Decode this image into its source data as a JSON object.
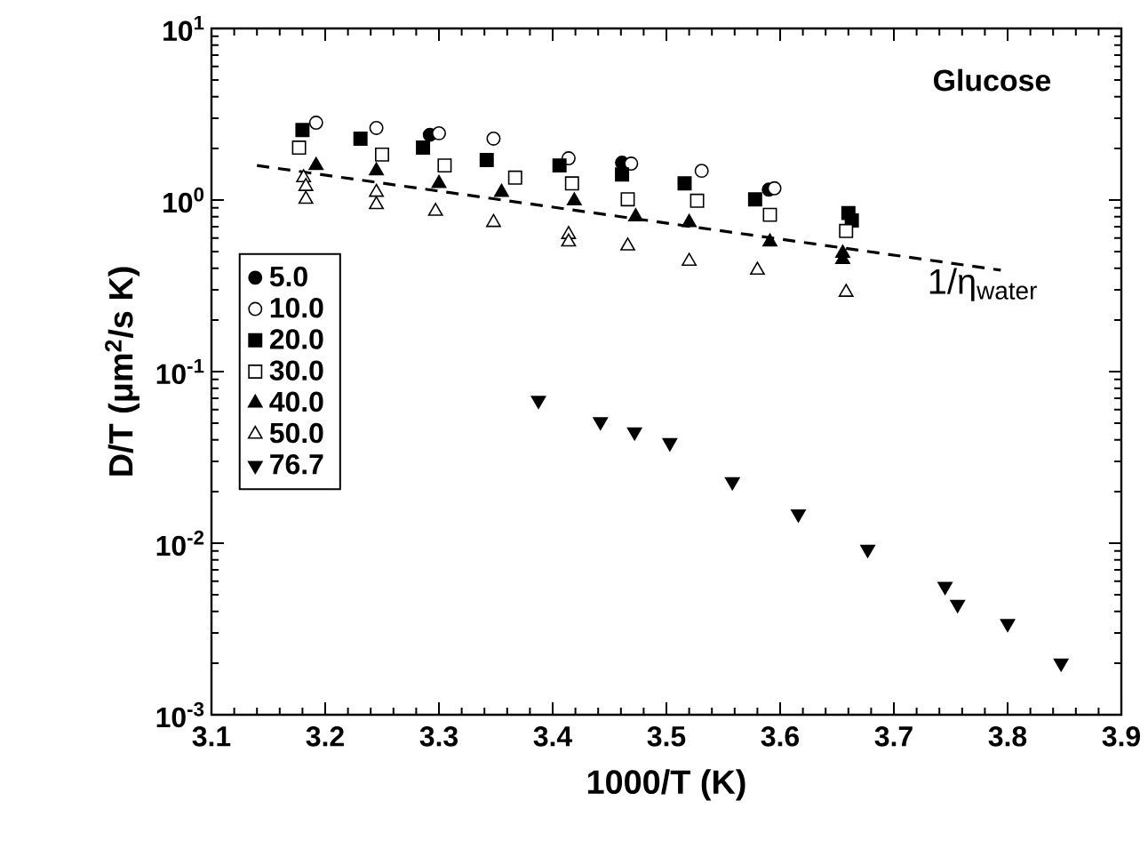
{
  "chart_data": {
    "type": "scatter",
    "xlabel": "1000/T (K)",
    "ylabel": "D/T (μm$^{2}$/s K)",
    "log": "y",
    "xlim": [
      3.1,
      3.9
    ],
    "xticks": [
      3.1,
      3.2,
      3.3,
      3.4,
      3.5,
      3.6,
      3.7,
      3.8,
      3.9
    ],
    "ylim": [
      0.001,
      10
    ],
    "yticks": [
      {
        "value": 0.001,
        "label": "10$^{-3}$"
      },
      {
        "value": 0.01,
        "label": "10$^{-2}$"
      },
      {
        "value": 0.1,
        "label": "10$^{-1}$"
      },
      {
        "value": 1,
        "label": "10$^{0}$"
      },
      {
        "value": 10,
        "label": "10$^{1}$"
      }
    ],
    "legend": "left",
    "grid": false,
    "annotations": [
      "Glucose",
      "1/η$_{water}$"
    ],
    "series": [
      {
        "name": "5.0",
        "color": "#000000",
        "marker": "circle",
        "x": [
          3.292,
          3.461,
          3.59
        ],
        "values": [
          2.4,
          1.65,
          1.15
        ]
      },
      {
        "name": "10.0",
        "color": "#ffffff",
        "marker": "circle",
        "x": [
          3.192,
          3.245,
          3.3,
          3.348,
          3.414,
          3.469,
          3.531,
          3.595
        ],
        "values": [
          2.82,
          2.63,
          2.45,
          2.28,
          1.75,
          1.63,
          1.48,
          1.17
        ]
      },
      {
        "name": "20.0",
        "color": "#000000",
        "marker": "square",
        "x": [
          3.18,
          3.231,
          3.286,
          3.342,
          3.406,
          3.461,
          3.516,
          3.578,
          3.66,
          3.663
        ],
        "values": [
          2.56,
          2.28,
          2.02,
          1.71,
          1.59,
          1.41,
          1.25,
          1.01,
          0.84,
          0.76
        ]
      },
      {
        "name": "30.0",
        "color": "#ffffff",
        "marker": "square",
        "x": [
          3.177,
          3.25,
          3.305,
          3.367,
          3.417,
          3.466,
          3.527,
          3.591,
          3.658
        ],
        "values": [
          2.02,
          1.84,
          1.59,
          1.35,
          1.25,
          1.01,
          0.99,
          0.82,
          0.66
        ]
      },
      {
        "name": "40.0",
        "color": "#000000",
        "marker": "triangle",
        "x": [
          3.192,
          3.245,
          3.3,
          3.355,
          3.419,
          3.473,
          3.52,
          3.591,
          3.655,
          3.655
        ],
        "values": [
          1.59,
          1.48,
          1.25,
          1.11,
          0.99,
          0.8,
          0.74,
          0.57,
          0.49,
          0.45
        ]
      },
      {
        "name": "50.0",
        "color": "#ffffff",
        "marker": "triangle",
        "x": [
          3.181,
          3.183,
          3.183,
          3.245,
          3.245,
          3.297,
          3.348,
          3.414,
          3.414,
          3.466,
          3.52,
          3.58,
          3.658
        ],
        "values": [
          1.35,
          1.2,
          1.01,
          1.11,
          0.94,
          0.86,
          0.74,
          0.63,
          0.57,
          0.54,
          0.44,
          0.39,
          0.29
        ]
      },
      {
        "name": "76.7",
        "color": "#000000",
        "marker": "triangle-down",
        "x": [
          3.3875,
          3.442,
          3.472,
          3.503,
          3.558,
          3.616,
          3.677,
          3.745,
          3.756,
          3.8,
          3.847
        ],
        "values": [
          0.068,
          0.051,
          0.0445,
          0.0385,
          0.0228,
          0.0148,
          0.0092,
          0.0056,
          0.0044,
          0.0034,
          0.002
        ]
      },
      {
        "type": "line",
        "line_style": "dashed",
        "marker": "none",
        "color": "#000000",
        "x": [
          3.14,
          3.794
        ],
        "values": [
          1.59,
          0.39
        ]
      }
    ]
  }
}
